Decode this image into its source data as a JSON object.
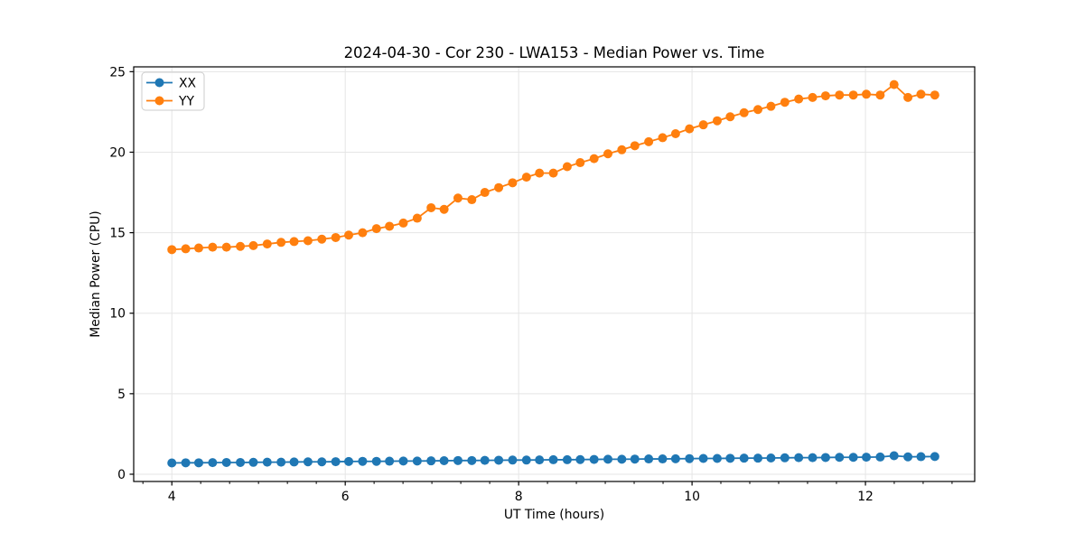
{
  "chart_data": {
    "type": "line",
    "title": "2024-04-30 - Cor 230 - LWA153 - Median Power vs. Time",
    "xlabel": "UT Time (hours)",
    "ylabel": "Median Power (CPU)",
    "xlim": [
      3.56,
      13.26
    ],
    "ylim": [
      -0.45,
      25.3
    ],
    "xticks": [
      4,
      6,
      8,
      10,
      12
    ],
    "yticks": [
      0,
      5,
      10,
      15,
      20,
      25
    ],
    "minor_xtick_step": 0.3333,
    "grid": true,
    "legend_position": "upper left",
    "marker": "o",
    "background_color": "#ffffff",
    "grid_color": "#e5e5e5",
    "spine_color": "#000000",
    "x": [
      4.0,
      4.16,
      4.31,
      4.47,
      4.63,
      4.79,
      4.94,
      5.1,
      5.26,
      5.41,
      5.57,
      5.73,
      5.89,
      6.04,
      6.2,
      6.36,
      6.51,
      6.67,
      6.83,
      6.99,
      7.14,
      7.3,
      7.46,
      7.61,
      7.77,
      7.93,
      8.09,
      8.24,
      8.4,
      8.56,
      8.71,
      8.87,
      9.03,
      9.19,
      9.34,
      9.5,
      9.66,
      9.81,
      9.97,
      10.13,
      10.29,
      10.44,
      10.6,
      10.76,
      10.91,
      11.07,
      11.23,
      11.39,
      11.54,
      11.7,
      11.86,
      12.01,
      12.17,
      12.33,
      12.49,
      12.64,
      12.8
    ],
    "series": [
      {
        "name": "XX",
        "color": "#1f77b4",
        "values": [
          0.7,
          0.71,
          0.71,
          0.72,
          0.73,
          0.73,
          0.74,
          0.75,
          0.75,
          0.76,
          0.77,
          0.77,
          0.78,
          0.79,
          0.8,
          0.8,
          0.81,
          0.82,
          0.82,
          0.83,
          0.84,
          0.85,
          0.85,
          0.86,
          0.87,
          0.88,
          0.88,
          0.89,
          0.9,
          0.9,
          0.91,
          0.92,
          0.93,
          0.93,
          0.94,
          0.95,
          0.95,
          0.96,
          0.97,
          0.98,
          0.98,
          0.99,
          1.0,
          1.0,
          1.01,
          1.02,
          1.03,
          1.03,
          1.04,
          1.05,
          1.05,
          1.06,
          1.07,
          1.15,
          1.08,
          1.09,
          1.1
        ]
      },
      {
        "name": "YY",
        "color": "#ff7f0e",
        "values": [
          13.95,
          14.0,
          14.05,
          14.1,
          14.1,
          14.15,
          14.2,
          14.3,
          14.4,
          14.45,
          14.5,
          14.6,
          14.7,
          14.85,
          15.0,
          15.25,
          15.4,
          15.6,
          15.9,
          16.55,
          16.45,
          17.15,
          17.05,
          17.5,
          17.8,
          18.1,
          18.45,
          18.7,
          18.7,
          19.1,
          19.35,
          19.6,
          19.9,
          20.15,
          20.4,
          20.65,
          20.9,
          21.15,
          21.45,
          21.7,
          21.95,
          22.2,
          22.45,
          22.65,
          22.85,
          23.1,
          23.3,
          23.4,
          23.5,
          23.55,
          23.55,
          23.6,
          23.55,
          24.2,
          23.4,
          23.6,
          23.55
        ]
      }
    ]
  }
}
